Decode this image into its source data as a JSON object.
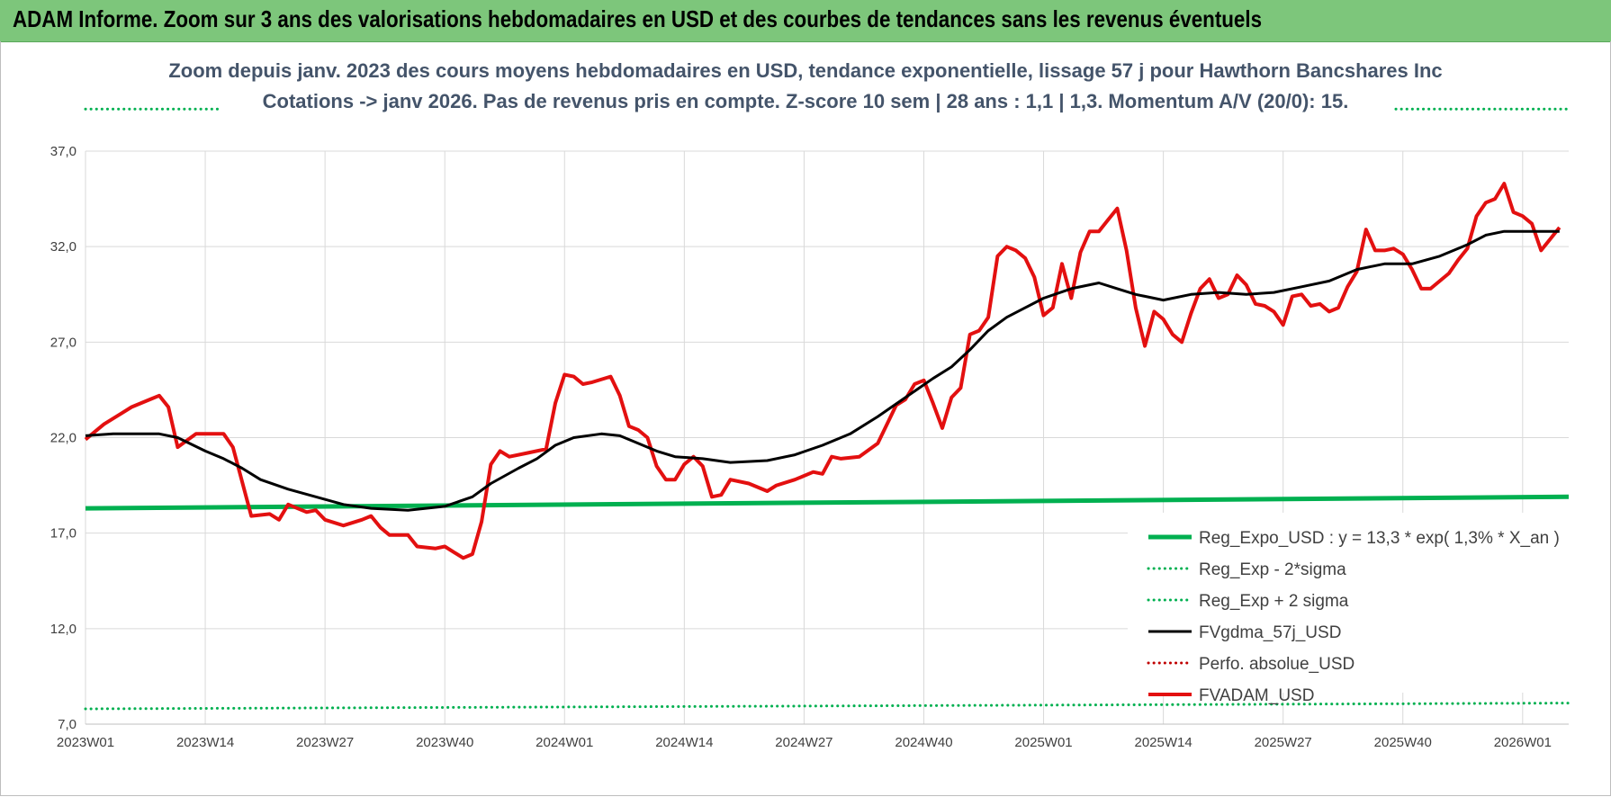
{
  "banner": {
    "title": "ADAM Informe. Zoom sur 3 ans des valorisations hebdomadaires en USD et des courbes de tendances sans les revenus éventuels"
  },
  "colors": {
    "banner_bg": "#7dc67b",
    "reg_expo": "#00b050",
    "fvgdma": "#000000",
    "perfo": "#c00000",
    "fvadam": "#e31010",
    "grid": "#d9d9d9"
  },
  "chart_data": {
    "type": "line",
    "title": "Zoom depuis janv. 2023 des cours moyens hebdomadaires en USD, tendance exponentielle, lissage 57 j pour Hawthorn Bancshares Inc",
    "subtitle": "Cotations -> janv 2026. Pas de revenus pris en compte. Z-score 10 sem | 28 ans : 1,1 | 1,3. Momentum A/V (20/0): 15.",
    "xlabel": "",
    "ylabel": "",
    "ylim": [
      7,
      37
    ],
    "y_ticks": [
      "7,0",
      "12,0",
      "17,0",
      "22,0",
      "27,0",
      "32,0",
      "37,0"
    ],
    "x_ticks": [
      "2023W01",
      "2023W14",
      "2023W27",
      "2023W40",
      "2024W01",
      "2024W14",
      "2024W27",
      "2024W40",
      "2025W01",
      "2025W14",
      "2025W27",
      "2025W40",
      "2026W01"
    ],
    "x_range": [
      0,
      161
    ],
    "tick_positions": [
      0,
      13,
      26,
      39,
      52,
      65,
      78,
      91,
      104,
      117,
      130,
      143,
      156
    ],
    "legend_position": "bottom-right",
    "series": [
      {
        "name": "Reg_Expo_USD : y = 13,3 * exp( 1,3% *  X_an )",
        "style": "solid",
        "width": 5,
        "color": "#00b050",
        "points": [
          [
            0,
            18.3
          ],
          [
            161,
            18.9
          ]
        ]
      },
      {
        "name": "Reg_Exp - 2*sigma",
        "style": "dotted",
        "width": 3,
        "color": "#00b050",
        "points": [
          [
            0,
            7.8
          ],
          [
            161,
            8.1
          ]
        ]
      },
      {
        "name": "Reg_Exp + 2 sigma",
        "style": "dotted",
        "width": 3,
        "color": "#00b050",
        "points": [
          [
            0,
            39.2
          ],
          [
            161,
            39.2
          ]
        ]
      },
      {
        "name": "FVgdma_57j_USD",
        "style": "solid",
        "width": 3,
        "color": "#000000",
        "points": [
          [
            0,
            22.1
          ],
          [
            3,
            22.2
          ],
          [
            8,
            22.2
          ],
          [
            10,
            22.0
          ],
          [
            13,
            21.3
          ],
          [
            15,
            20.9
          ],
          [
            17,
            20.4
          ],
          [
            19,
            19.8
          ],
          [
            22,
            19.3
          ],
          [
            25,
            18.9
          ],
          [
            28,
            18.5
          ],
          [
            31,
            18.3
          ],
          [
            35,
            18.2
          ],
          [
            39,
            18.4
          ],
          [
            42,
            18.9
          ],
          [
            44,
            19.6
          ],
          [
            47,
            20.4
          ],
          [
            49,
            20.9
          ],
          [
            51,
            21.6
          ],
          [
            53,
            22.0
          ],
          [
            56,
            22.2
          ],
          [
            58,
            22.1
          ],
          [
            60,
            21.7
          ],
          [
            62,
            21.3
          ],
          [
            64,
            21.0
          ],
          [
            67,
            20.9
          ],
          [
            70,
            20.7
          ],
          [
            74,
            20.8
          ],
          [
            77,
            21.1
          ],
          [
            80,
            21.6
          ],
          [
            83,
            22.2
          ],
          [
            86,
            23.1
          ],
          [
            89,
            24.1
          ],
          [
            92,
            25.1
          ],
          [
            94,
            25.7
          ],
          [
            96,
            26.6
          ],
          [
            98,
            27.6
          ],
          [
            100,
            28.3
          ],
          [
            102,
            28.8
          ],
          [
            104,
            29.3
          ],
          [
            107,
            29.8
          ],
          [
            110,
            30.1
          ],
          [
            112,
            29.8
          ],
          [
            114,
            29.5
          ],
          [
            117,
            29.2
          ],
          [
            120,
            29.5
          ],
          [
            123,
            29.6
          ],
          [
            126,
            29.5
          ],
          [
            129,
            29.6
          ],
          [
            132,
            29.9
          ],
          [
            135,
            30.2
          ],
          [
            138,
            30.8
          ],
          [
            141,
            31.1
          ],
          [
            144,
            31.1
          ],
          [
            147,
            31.5
          ],
          [
            150,
            32.1
          ],
          [
            152,
            32.6
          ],
          [
            154,
            32.8
          ],
          [
            157,
            32.8
          ],
          [
            160,
            32.8
          ]
        ]
      },
      {
        "name": "Perfo. absolue_USD",
        "style": "dotted",
        "width": 3,
        "color": "#c00000",
        "points": []
      },
      {
        "name": "FVADAM_USD",
        "style": "solid",
        "width": 4,
        "color": "#e31010",
        "points": [
          [
            0,
            21.9
          ],
          [
            2,
            22.7
          ],
          [
            4,
            23.3
          ],
          [
            5,
            23.6
          ],
          [
            7,
            24.0
          ],
          [
            8,
            24.2
          ],
          [
            9,
            23.6
          ],
          [
            10,
            21.5
          ],
          [
            12,
            22.2
          ],
          [
            15,
            22.2
          ],
          [
            16,
            21.5
          ],
          [
            18,
            17.9
          ],
          [
            20,
            18.0
          ],
          [
            21,
            17.7
          ],
          [
            22,
            18.5
          ],
          [
            24,
            18.1
          ],
          [
            25,
            18.2
          ],
          [
            26,
            17.7
          ],
          [
            28,
            17.4
          ],
          [
            30,
            17.7
          ],
          [
            31,
            17.9
          ],
          [
            32,
            17.3
          ],
          [
            33,
            16.9
          ],
          [
            35,
            16.9
          ],
          [
            36,
            16.3
          ],
          [
            38,
            16.2
          ],
          [
            39,
            16.3
          ],
          [
            40,
            16.0
          ],
          [
            41,
            15.7
          ],
          [
            42,
            15.9
          ],
          [
            43,
            17.6
          ],
          [
            44,
            20.6
          ],
          [
            45,
            21.3
          ],
          [
            46,
            21.0
          ],
          [
            48,
            21.2
          ],
          [
            50,
            21.4
          ],
          [
            51,
            23.8
          ],
          [
            52,
            25.3
          ],
          [
            53,
            25.2
          ],
          [
            54,
            24.8
          ],
          [
            55,
            24.9
          ],
          [
            57,
            25.2
          ],
          [
            58,
            24.2
          ],
          [
            59,
            22.6
          ],
          [
            60,
            22.4
          ],
          [
            61,
            22.0
          ],
          [
            62,
            20.5
          ],
          [
            63,
            19.8
          ],
          [
            64,
            19.8
          ],
          [
            65,
            20.6
          ],
          [
            66,
            21.0
          ],
          [
            67,
            20.5
          ],
          [
            68,
            18.9
          ],
          [
            69,
            19.0
          ],
          [
            70,
            19.8
          ],
          [
            72,
            19.6
          ],
          [
            74,
            19.2
          ],
          [
            75,
            19.5
          ],
          [
            77,
            19.8
          ],
          [
            79,
            20.2
          ],
          [
            80,
            20.1
          ],
          [
            81,
            21.0
          ],
          [
            82,
            20.9
          ],
          [
            84,
            21.0
          ],
          [
            86,
            21.7
          ],
          [
            88,
            23.7
          ],
          [
            89,
            24.0
          ],
          [
            90,
            24.8
          ],
          [
            91,
            25.0
          ],
          [
            92,
            23.8
          ],
          [
            93,
            22.5
          ],
          [
            94,
            24.1
          ],
          [
            95,
            24.6
          ],
          [
            96,
            27.4
          ],
          [
            97,
            27.6
          ],
          [
            98,
            28.3
          ],
          [
            99,
            31.5
          ],
          [
            100,
            32.0
          ],
          [
            101,
            31.8
          ],
          [
            102,
            31.4
          ],
          [
            103,
            30.4
          ],
          [
            104,
            28.4
          ],
          [
            105,
            28.8
          ],
          [
            106,
            31.1
          ],
          [
            107,
            29.3
          ],
          [
            108,
            31.7
          ],
          [
            109,
            32.8
          ],
          [
            110,
            32.8
          ],
          [
            111,
            33.4
          ],
          [
            112,
            34.0
          ],
          [
            113,
            31.8
          ],
          [
            114,
            28.8
          ],
          [
            115,
            26.8
          ],
          [
            116,
            28.6
          ],
          [
            117,
            28.2
          ],
          [
            118,
            27.4
          ],
          [
            119,
            27.0
          ],
          [
            120,
            28.5
          ],
          [
            121,
            29.8
          ],
          [
            122,
            30.3
          ],
          [
            123,
            29.3
          ],
          [
            124,
            29.5
          ],
          [
            125,
            30.5
          ],
          [
            126,
            30.0
          ],
          [
            127,
            29.0
          ],
          [
            128,
            28.9
          ],
          [
            129,
            28.6
          ],
          [
            130,
            27.9
          ],
          [
            131,
            29.4
          ],
          [
            132,
            29.5
          ],
          [
            133,
            28.9
          ],
          [
            134,
            29.0
          ],
          [
            135,
            28.6
          ],
          [
            136,
            28.8
          ],
          [
            137,
            29.9
          ],
          [
            138,
            30.7
          ],
          [
            139,
            32.9
          ],
          [
            140,
            31.8
          ],
          [
            141,
            31.8
          ],
          [
            142,
            31.9
          ],
          [
            143,
            31.6
          ],
          [
            144,
            30.8
          ],
          [
            145,
            29.8
          ],
          [
            146,
            29.8
          ],
          [
            147,
            30.2
          ],
          [
            148,
            30.6
          ],
          [
            149,
            31.3
          ],
          [
            150,
            31.9
          ],
          [
            151,
            33.6
          ],
          [
            152,
            34.3
          ],
          [
            153,
            34.5
          ],
          [
            154,
            35.3
          ],
          [
            155,
            33.8
          ],
          [
            156,
            33.6
          ],
          [
            157,
            33.2
          ],
          [
            158,
            31.8
          ],
          [
            159,
            32.4
          ],
          [
            160,
            33.0
          ]
        ]
      }
    ]
  }
}
